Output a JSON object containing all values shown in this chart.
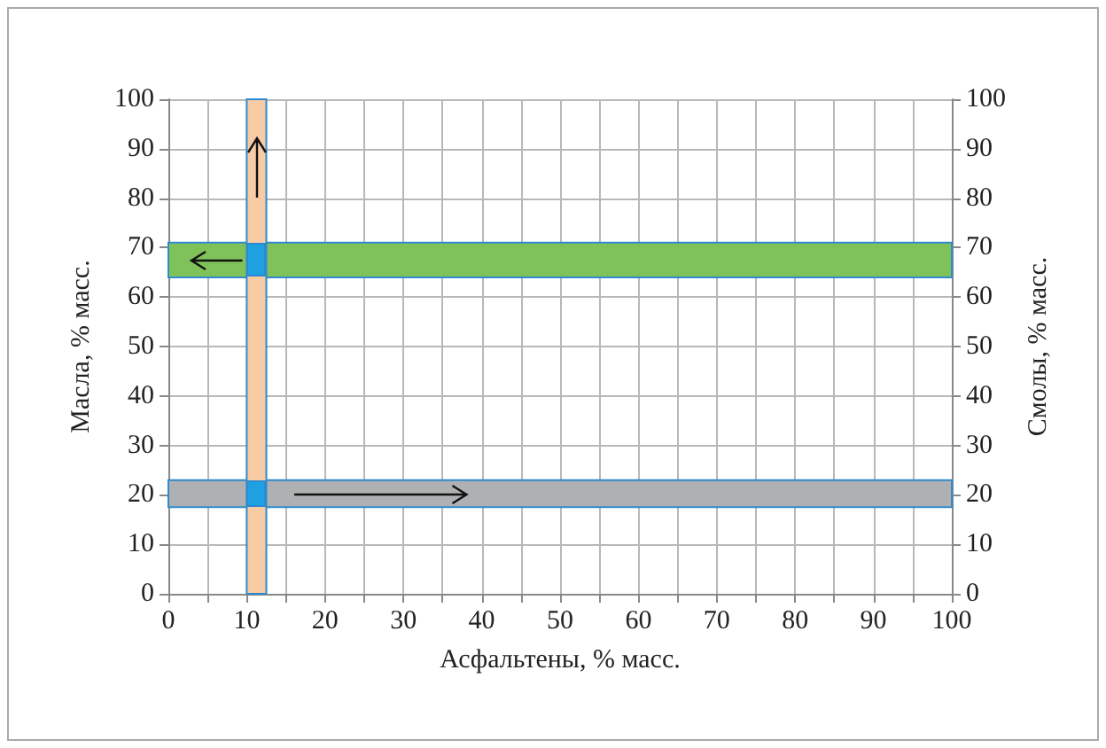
{
  "chart_data": {
    "type": "line",
    "xlabel": "Асфальтены, % масс.",
    "ylabel": "Масла, % масс.",
    "y2label": "Смолы, % масс.",
    "xlim": [
      0,
      100
    ],
    "xticks": [
      0,
      {
        "value": 5,
        "label": null
      },
      10,
      {
        "value": 15,
        "label": null
      },
      20,
      {
        "value": 25,
        "label": null
      },
      30,
      {
        "value": 35,
        "label": null
      },
      40,
      {
        "value": 45,
        "label": null
      },
      50,
      {
        "value": 55,
        "label": null
      },
      60,
      {
        "value": 65,
        "label": null
      },
      70,
      {
        "value": 75,
        "label": null
      },
      80,
      {
        "value": 85,
        "label": null
      },
      90,
      {
        "value": 95,
        "label": null
      },
      100
    ],
    "ylim": [
      0,
      100
    ],
    "yticks": [
      0,
      10,
      20,
      30,
      40,
      50,
      60,
      70,
      80,
      90,
      100
    ],
    "y2lim": [
      0,
      100
    ],
    "y2ticks": [
      0,
      10,
      20,
      30,
      40,
      50,
      60,
      70,
      80,
      90,
      100
    ],
    "grid": true,
    "bands": [
      {
        "axis": "x",
        "from": 10,
        "to": 12.5,
        "color": "#f8cba4"
      },
      {
        "axis": "y",
        "from": 64,
        "to": 71,
        "color": "#7fc25a"
      },
      {
        "axis": "y2",
        "from": 17.5,
        "to": 23,
        "color": "#aeb0b1"
      }
    ]
  }
}
